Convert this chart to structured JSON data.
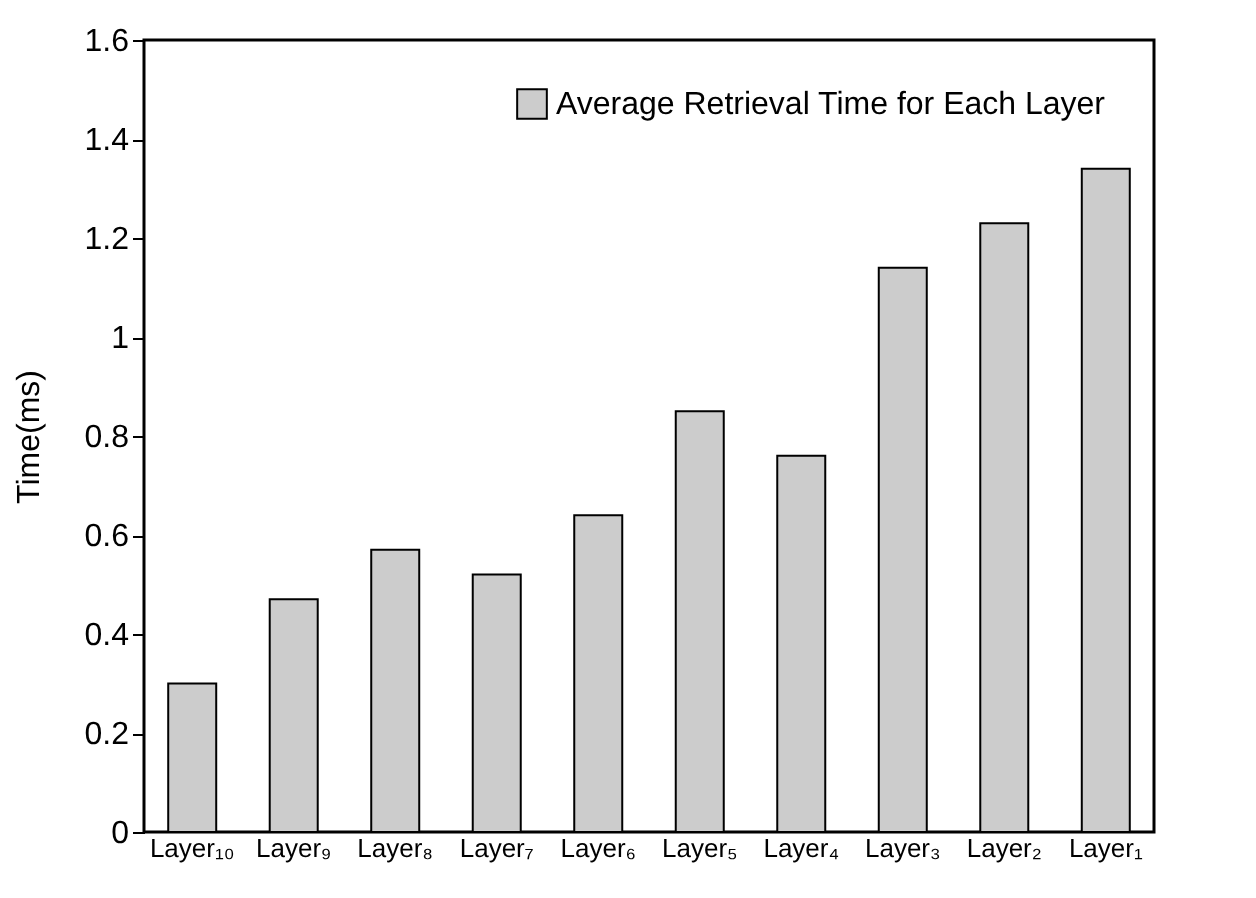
{
  "chart_data": {
    "type": "bar",
    "ylabel": "Time(ms)",
    "categories": [
      "Layer₁₀",
      "Layer₉",
      "Layer₈",
      "Layer₇",
      "Layer₆",
      "Layer₅",
      "Layer₄",
      "Layer₃",
      "Layer₂",
      "Layer₁"
    ],
    "series": [
      {
        "name": "Average Retrieval Time for Each Layer",
        "color": "#cccccc",
        "values": [
          0.3,
          0.47,
          0.57,
          0.52,
          0.64,
          0.85,
          0.76,
          1.14,
          1.23,
          1.34
        ]
      }
    ],
    "ylim": [
      0,
      1.6
    ],
    "yticks": [
      0,
      0.2,
      0.4,
      0.6,
      0.8,
      1,
      1.2,
      1.4,
      1.6
    ],
    "grid": false,
    "legend": "top right"
  }
}
